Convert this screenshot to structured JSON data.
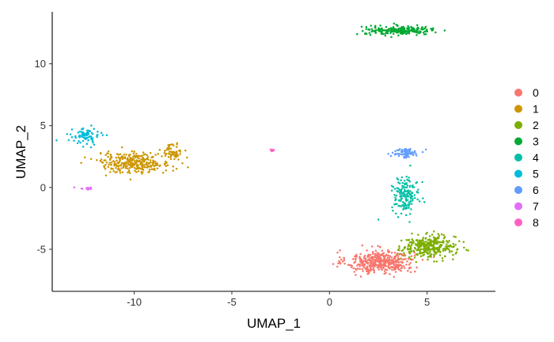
{
  "chart_data": {
    "type": "scatter",
    "title": "",
    "xlabel": "UMAP_1",
    "ylabel": "UMAP_2",
    "xlim": [
      -14.2,
      8.5
    ],
    "ylim": [
      -8.4,
      14.2
    ],
    "x_ticks": [
      {
        "value": -10,
        "label": "-10"
      },
      {
        "value": -5,
        "label": "-5"
      },
      {
        "value": 0,
        "label": "0"
      },
      {
        "value": 5,
        "label": "5"
      }
    ],
    "y_ticks": [
      {
        "value": -5,
        "label": "-5"
      },
      {
        "value": 0,
        "label": "0"
      },
      {
        "value": 5,
        "label": "5"
      },
      {
        "value": 10,
        "label": "10"
      }
    ],
    "grid": false,
    "legend_position": "right",
    "series": [
      {
        "name": "0",
        "color": "#F8766D",
        "clusters": [
          {
            "center": [
              2.6,
              -6.0
            ],
            "spread": [
              1.55,
              0.85
            ],
            "n": 420
          }
        ]
      },
      {
        "name": "1",
        "color": "#CD9600",
        "clusters": [
          {
            "center": [
              -10.0,
              2.0
            ],
            "spread": [
              1.7,
              0.75
            ],
            "n": 300
          },
          {
            "center": [
              -8.0,
              2.9
            ],
            "spread": [
              0.4,
              0.6
            ],
            "n": 60
          }
        ]
      },
      {
        "name": "2",
        "color": "#7CAE00",
        "clusters": [
          {
            "center": [
              5.1,
              -4.8
            ],
            "spread": [
              1.25,
              0.8
            ],
            "n": 330
          }
        ]
      },
      {
        "name": "3",
        "color": "#00A932",
        "clusters": [
          {
            "center": [
              3.6,
              12.7
            ],
            "spread": [
              1.6,
              0.32
            ],
            "n": 230
          }
        ]
      },
      {
        "name": "4",
        "color": "#00BFA6",
        "clusters": [
          {
            "center": [
              3.9,
              -0.6
            ],
            "spread": [
              0.65,
              1.3
            ],
            "n": 160
          }
        ]
      },
      {
        "name": "5",
        "color": "#00BBDA",
        "clusters": [
          {
            "center": [
              -12.5,
              4.1
            ],
            "spread": [
              0.65,
              0.6
            ],
            "n": 80
          }
        ]
      },
      {
        "name": "6",
        "color": "#619CFF",
        "clusters": [
          {
            "center": [
              3.9,
              2.8
            ],
            "spread": [
              0.6,
              0.35
            ],
            "n": 70
          }
        ]
      },
      {
        "name": "7",
        "color": "#E16EF7",
        "clusters": [
          {
            "center": [
              -12.4,
              -0.1
            ],
            "spread": [
              0.45,
              0.12
            ],
            "n": 16
          }
        ]
      },
      {
        "name": "8",
        "color": "#FF61C3",
        "clusters": [
          {
            "center": [
              -2.9,
              3.0
            ],
            "spread": [
              0.1,
              0.08
            ],
            "n": 10
          }
        ]
      }
    ]
  }
}
